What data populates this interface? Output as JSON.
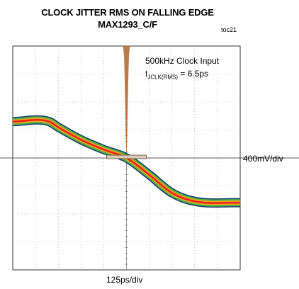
{
  "chart_data": {
    "type": "eye-diagram",
    "title": "CLOCK JITTER RMS ON FALLING EDGE",
    "subtitle": "MAX1293_C/F",
    "figure_id": "toc21",
    "annotation": {
      "line1": "500kHz Clock Input",
      "prefix": "t",
      "sub": "JCLK(RMS)",
      "value": " = 6.5ps"
    },
    "xlabel": "125ps/div",
    "ylabel": "400mV/div",
    "x_divisions": 10,
    "y_divisions": 8,
    "trace": {
      "x_ps": [
        -625,
        -425,
        -375,
        -250,
        -125,
        0,
        125,
        250,
        375,
        625
      ],
      "y_div": [
        1.3,
        1.3,
        1.1,
        0.65,
        0.3,
        0.0,
        -0.6,
        -1.25,
        -1.55,
        -1.6
      ]
    },
    "jitter_histogram": {
      "center_ps": 0,
      "sigma_ps": 6.5,
      "color": "#b8703a"
    },
    "colors": {
      "trace_core": "#e8231a",
      "trace_mid": "#f2a01c",
      "trace_outer": "#48b548",
      "trace_edge": "#1b3b6b",
      "grid": "#9a9a9a",
      "frame": "#333333"
    }
  }
}
